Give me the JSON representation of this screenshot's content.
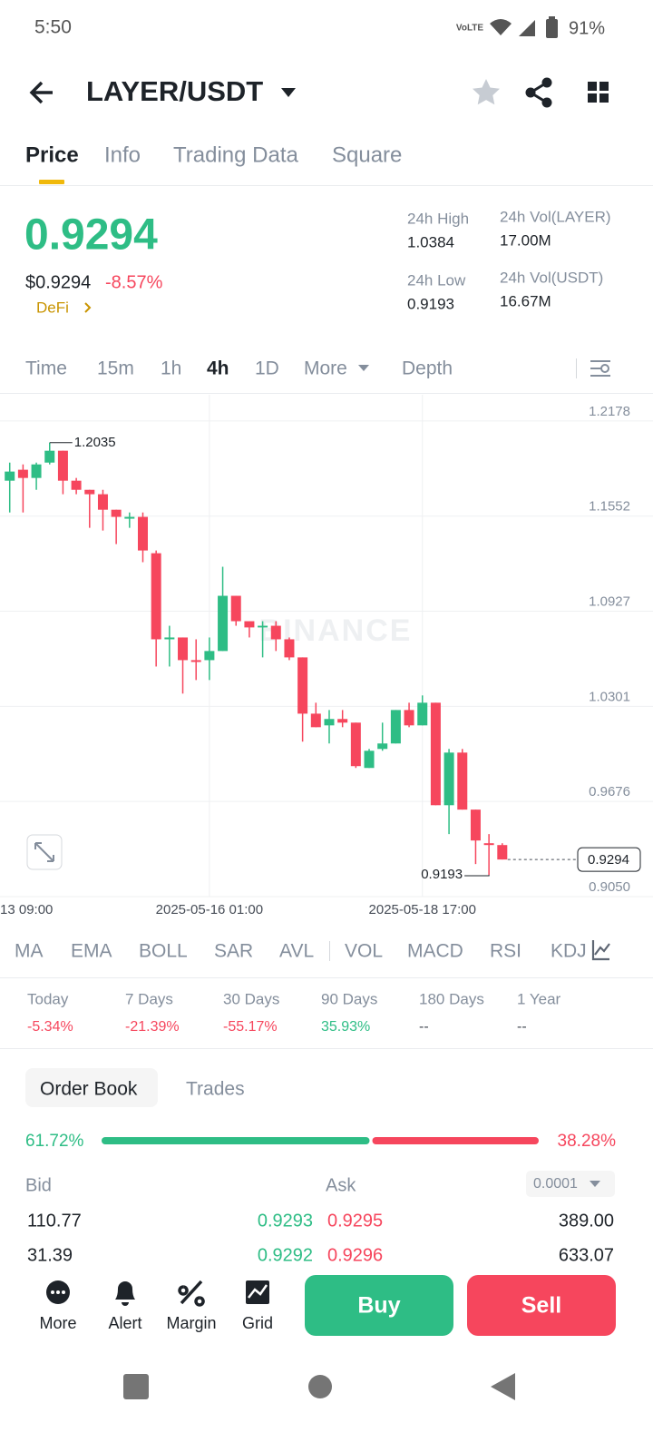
{
  "status_bar": {
    "time": "5:50",
    "battery": "91%"
  },
  "header": {
    "pair": "LAYER/USDT"
  },
  "tabs": [
    "Price",
    "Info",
    "Trading Data",
    "Square"
  ],
  "ticker": {
    "last": "0.9294",
    "usd": "$0.9294",
    "change": "-8.57%",
    "tag": "DeFi",
    "stats": [
      {
        "label": "24h High",
        "value": "1.0384"
      },
      {
        "label": "24h Vol(LAYER)",
        "value": "17.00M"
      },
      {
        "label": "24h Low",
        "value": "0.9193"
      },
      {
        "label": "24h Vol(USDT)",
        "value": "16.67M"
      }
    ]
  },
  "intervals": [
    "Time",
    "15m",
    "1h",
    "4h",
    "1D",
    "More",
    "Depth"
  ],
  "chart_data": {
    "type": "candlestick",
    "watermark": "BINANCE",
    "up_color": "#2ebd85",
    "down_color": "#f6465d",
    "candles": [
      {
        "open": 1.1785,
        "high": 1.1904,
        "low": 1.1576,
        "close": 1.1845
      },
      {
        "open": 1.1857,
        "high": 1.1892,
        "low": 1.1576,
        "close": 1.1803
      },
      {
        "open": 1.1803,
        "high": 1.1904,
        "low": 1.1725,
        "close": 1.1892
      },
      {
        "open": 1.1904,
        "high": 1.2035,
        "low": 1.1892,
        "close": 1.1982
      },
      {
        "open": 1.1982,
        "high": 1.1982,
        "low": 1.1696,
        "close": 1.1785
      },
      {
        "open": 1.1785,
        "high": 1.1803,
        "low": 1.1696,
        "close": 1.1725
      },
      {
        "open": 1.1725,
        "high": 1.1725,
        "low": 1.1475,
        "close": 1.1696
      },
      {
        "open": 1.1696,
        "high": 1.1725,
        "low": 1.1457,
        "close": 1.1594
      },
      {
        "open": 1.1594,
        "high": 1.1594,
        "low": 1.1368,
        "close": 1.1547
      },
      {
        "open": 1.1535,
        "high": 1.1576,
        "low": 1.1475,
        "close": 1.1547
      },
      {
        "open": 1.1547,
        "high": 1.1576,
        "low": 1.1249,
        "close": 1.1326
      },
      {
        "open": 1.1308,
        "high": 1.1326,
        "low": 1.0563,
        "close": 1.0742
      },
      {
        "open": 1.0742,
        "high": 1.0831,
        "low": 1.0563,
        "close": 1.0754
      },
      {
        "open": 1.0754,
        "high": 1.0754,
        "low": 1.0385,
        "close": 1.0605
      },
      {
        "open": 1.0605,
        "high": 1.0742,
        "low": 1.0474,
        "close": 1.0593
      },
      {
        "open": 1.0605,
        "high": 1.0754,
        "low": 1.0474,
        "close": 1.0665
      },
      {
        "open": 1.0665,
        "high": 1.1219,
        "low": 1.0665,
        "close": 1.1028
      },
      {
        "open": 1.1028,
        "high": 1.1028,
        "low": 1.0831,
        "close": 1.0861
      },
      {
        "open": 1.0861,
        "high": 1.0861,
        "low": 1.0754,
        "close": 1.082
      },
      {
        "open": 1.082,
        "high": 1.0861,
        "low": 1.0623,
        "close": 1.0831
      },
      {
        "open": 1.0831,
        "high": 1.0861,
        "low": 1.0665,
        "close": 1.0742
      },
      {
        "open": 1.0742,
        "high": 1.0754,
        "low": 1.0605,
        "close": 1.0623
      },
      {
        "open": 1.0623,
        "high": 1.0623,
        "low": 1.0069,
        "close": 1.0253
      },
      {
        "open": 1.0253,
        "high": 1.0325,
        "low": 1.0164,
        "close": 1.0164
      },
      {
        "open": 1.0176,
        "high": 1.0277,
        "low": 1.0057,
        "close": 1.0218
      },
      {
        "open": 1.0218,
        "high": 1.0277,
        "low": 1.0164,
        "close": 1.0194
      },
      {
        "open": 1.0194,
        "high": 1.0194,
        "low": 0.9896,
        "close": 0.9908
      },
      {
        "open": 0.9896,
        "high": 1.0021,
        "low": 0.9896,
        "close": 1.0009
      },
      {
        "open": 1.0021,
        "high": 1.0194,
        "low": 1.0009,
        "close": 1.0057
      },
      {
        "open": 1.0057,
        "high": 1.0277,
        "low": 1.0057,
        "close": 1.0277
      },
      {
        "open": 1.0277,
        "high": 1.0325,
        "low": 1.0164,
        "close": 1.0176
      },
      {
        "open": 1.0176,
        "high": 1.0373,
        "low": 1.0176,
        "close": 1.0325
      },
      {
        "open": 1.0325,
        "high": 1.0325,
        "low": 0.9651,
        "close": 0.9651
      },
      {
        "open": 0.9651,
        "high": 1.0021,
        "low": 0.9461,
        "close": 0.9997
      },
      {
        "open": 0.9997,
        "high": 1.0021,
        "low": 0.9622,
        "close": 0.9622
      },
      {
        "open": 0.9622,
        "high": 0.9622,
        "low": 0.9264,
        "close": 0.9419
      },
      {
        "open": 0.9401,
        "high": 0.9461,
        "low": 0.9193,
        "close": 0.9389
      },
      {
        "open": 0.9389,
        "high": 0.9401,
        "low": 0.9294,
        "close": 0.9294
      }
    ],
    "xlim": [
      -0.73,
      42.6
    ],
    "xticks": [
      {
        "value": -1,
        "label": "13 09:00"
      },
      {
        "value": 15,
        "label": "2025-05-16 01:00"
      },
      {
        "value": 31,
        "label": "2025-05-18 17:00"
      }
    ],
    "ylim": [
      0.905,
      1.235
    ],
    "yticks": [
      1.2178,
      1.1552,
      1.0927,
      1.0301,
      0.9676,
      {
        "value": 0.905,
        "label": "0.9050"
      }
    ],
    "grid": true
  },
  "indicators": [
    "MA",
    "EMA",
    "BOLL",
    "SAR",
    "AVL",
    "VOL",
    "MACD",
    "RSI",
    "KDJ"
  ],
  "performance": [
    {
      "label": "Today",
      "value": "-5.34%"
    },
    {
      "label": "7 Days",
      "value": "-21.39%"
    },
    {
      "label": "30 Days",
      "value": "-55.17%"
    },
    {
      "label": "90 Days",
      "value": "35.93%"
    },
    {
      "label": "180 Days",
      "value": "--"
    },
    {
      "label": "1 Year",
      "value": "--"
    }
  ],
  "order_book": {
    "tabs": [
      "Order Book",
      "Trades"
    ],
    "depth_ratio": {
      "values": [
        61.72,
        38.28
      ],
      "value_labels": [
        "61.72%",
        "38.28%"
      ]
    },
    "bid": "Bid",
    "ask": "Ask",
    "precision": "0.0001",
    "rows": [
      [
        "110.77",
        "0.9293",
        "0.9295",
        "389.00"
      ],
      [
        "31.39",
        "0.9292",
        "0.9296",
        "633.07"
      ]
    ]
  },
  "actions": [
    "More",
    "Alert",
    "Margin",
    "Grid"
  ],
  "buy": "Buy",
  "sell": "Sell"
}
